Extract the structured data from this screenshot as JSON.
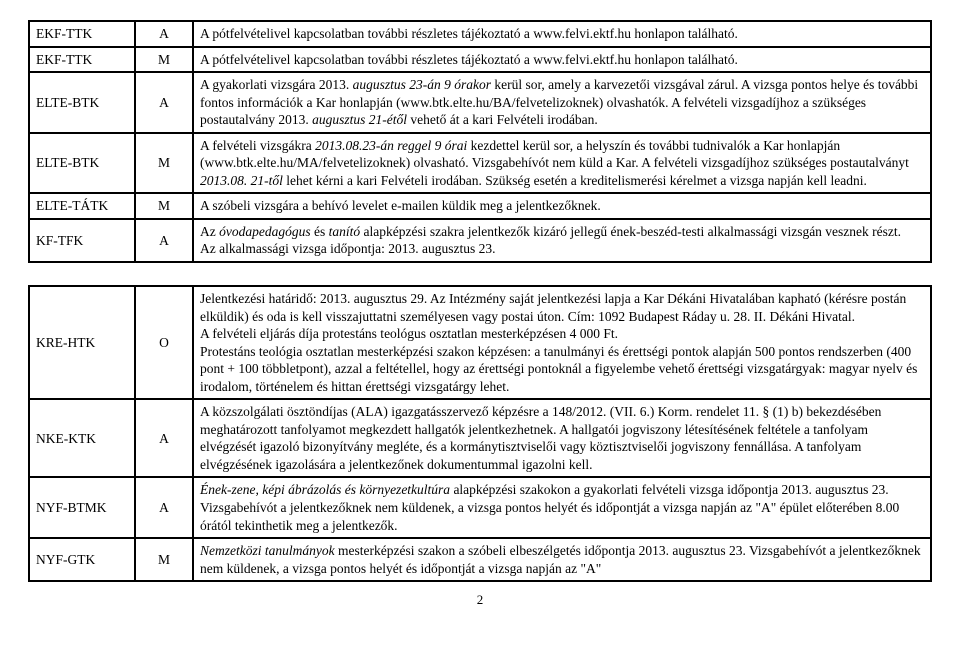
{
  "page_number": "2",
  "rows": [
    {
      "code": "EKF-TTK",
      "type": "A",
      "desc_html": "A pótfelvételivel kapcsolatban további részletes tájékoztató a www.felvi.ektf.hu honlapon található."
    },
    {
      "code": "EKF-TTK",
      "type": "M",
      "desc_html": "A pótfelvételivel kapcsolatban további részletes tájékoztató a www.felvi.ektf.hu honlapon található."
    },
    {
      "code": "ELTE-BTK",
      "type": "A",
      "desc_html": "A gyakorlati vizsgára 2013. <span class=\"ital\">augusztus 23-án 9 órakor</span> kerül sor, amely a karvezetői vizsgával zárul. A vizsga pontos helye és további fontos információk a Kar honlapján (www.btk.elte.hu/BA/felvetelizoknek) olvashatók. A felvételi vizsgadíjhoz a szükséges postautalvány 2013. <span class=\"ital\">augusztus 21-étől</span> vehető át a kari Felvételi irodában."
    },
    {
      "code": "ELTE-BTK",
      "type": "M",
      "desc_html": "A felvételi vizsgákra <span class=\"ital\">2013.08.23-án reggel 9 órai</span> kezdettel kerül sor, a helyszín és további tudnivalók a Kar honlapján (www.btk.elte.hu/MA/felvetelizoknek) olvasható. Vizsgabehívót nem küld a Kar. A felvételi vizsgadíjhoz szükséges postautalványt <span class=\"ital\">2013.08. 21-től</span> lehet kérni a kari Felvételi irodában. Szükség esetén a kreditelismerési kérelmet a vizsga napján kell leadni."
    },
    {
      "code": "ELTE-TÁTK",
      "type": "M",
      "desc_html": "A szóbeli vizsgára a behívó levelet e-mailen küldik meg a jelentkezőknek."
    },
    {
      "code": "KF-TFK",
      "type": "A",
      "desc_html": "Az <span class=\"ital\">óvodapedagógus</span> és <span class=\"ital\">tanító</span> alapképzési szakra jelentkezők kizáró jellegű ének-beszéd-testi alkalmassági vizsgán vesznek részt.<br>Az alkalmassági vizsga időpontja: 2013. augusztus 23."
    },
    {
      "gap": true
    },
    {
      "code": "KRE-HTK",
      "type": "O",
      "desc_html": "Jelentkezési határidő: 2013. augusztus 29. Az Intézmény saját jelentkezési lapja a Kar Dékáni Hivatalában kapható (kérésre postán elküldik) és oda is kell visszajuttatni személyesen vagy postai úton. Cím: 1092 Budapest Ráday u. 28. II. Dékáni Hivatal.<br>A felvételi eljárás díja protestáns teológus osztatlan mesterképzésen 4 000 Ft.<br>Protestáns teológia osztatlan mesterképzési szakon képzésen: a tanulmányi és érettségi pontok alapján 500 pontos rendszerben (400 pont + 100 többletpont), azzal a feltétellel, hogy az érettségi pontoknál a figyelembe vehető érettségi vizsgatárgyak: magyar nyelv és irodalom, történelem és hittan érettségi vizsgatárgy lehet."
    },
    {
      "code": "NKE-KTK",
      "type": "A",
      "desc_html": "A közszolgálati ösztöndíjas (ALA) igazgatásszervező képzésre a 148/2012. (VII. 6.) Korm. rendelet 11. § (1) b) bekezdésében meghatározott tanfolyamot megkezdett hallgatók jelentkezhetnek. A hallgatói jogviszony létesítésének feltétele a tanfolyam elvégzését igazoló bizonyítvány megléte, és a kormánytisztviselői vagy köztisztviselői jogviszony fennállása. A tanfolyam elvégzésének igazolására a jelentkezőnek dokumentummal igazolni kell."
    },
    {
      "code": "NYF-BTMK",
      "type": "A",
      "desc_html": "<span class=\"ital\">Ének-zene, képi ábrázolás és környezetkultúra</span> alapképzési szakokon a gyakorlati felvételi vizsga időpontja 2013. augusztus 23.  Vizsgabehívót a jelentkezőknek nem küldenek, a vizsga pontos helyét és időpontját a vizsga napján az \"A\" épület előterében 8.00 órától tekinthetik meg a jelentkezők."
    },
    {
      "code": "NYF-GTK",
      "type": "M",
      "desc_html": "<span class=\"ital\">Nemzetközi tanulmányok</span> mesterképzési szakon a szóbeli elbeszélgetés időpontja 2013. augusztus 23.  Vizsgabehívót a jelentkezőknek nem küldenek, a vizsga pontos helyét és időpontját a vizsga napján az \"A\""
    }
  ]
}
